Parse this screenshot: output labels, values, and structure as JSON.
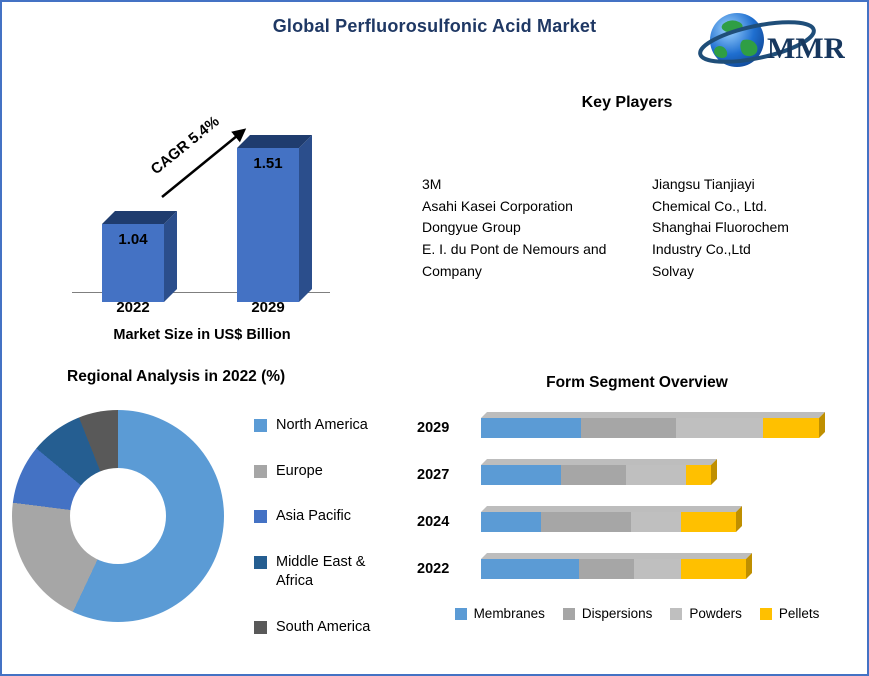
{
  "page": {
    "title": "Global Perfluorosulfonic Acid Market"
  },
  "logo": {
    "text": "MMR"
  },
  "key_players": {
    "title": "Key Players",
    "columns": [
      [
        "3M",
        "Asahi Kasei Corporation",
        "Dongyue Group",
        "E. I. du Pont de Nemours and Company"
      ],
      [
        "Jiangsu Tianjiayi Chemical Co., Ltd.",
        "Shanghai Fluorochem Industry Co.,Ltd",
        "Solvay"
      ]
    ]
  },
  "chart_data": [
    {
      "type": "bar",
      "title": "Market Size in US$ Billion",
      "categories": [
        "2022",
        "2029"
      ],
      "values": [
        1.04,
        1.51
      ],
      "annotation": "CAGR 5.4%",
      "bar_color": "#4472C4",
      "ylim": [
        0,
        1.6
      ]
    },
    {
      "type": "pie",
      "subtype": "donut",
      "title": "Regional Analysis in 2022 (%)",
      "labels": [
        "North America",
        "Europe",
        "Asia Pacific",
        "Middle East & Africa",
        "South America"
      ],
      "values": [
        57,
        20,
        9,
        8,
        6
      ],
      "colors": [
        "#5B9BD5",
        "#A6A6A6",
        "#4472C4",
        "#255E91",
        "#595959"
      ],
      "legend_position": "right"
    },
    {
      "type": "bar",
      "subtype": "stacked-horizontal",
      "title": "Form Segment Overview",
      "categories": [
        "2029",
        "2027",
        "2024",
        "2022"
      ],
      "series": [
        {
          "name": "Membranes",
          "color": "#5B9BD5",
          "values": [
            100,
            80,
            60,
            98
          ]
        },
        {
          "name": "Dispersions",
          "color": "#A6A6A6",
          "values": [
            95,
            65,
            90,
            55
          ]
        },
        {
          "name": "Powders",
          "color": "#BFBFBF",
          "values": [
            87,
            60,
            50,
            47
          ]
        },
        {
          "name": "Pellets",
          "color": "#FFC000",
          "values": [
            56,
            25,
            55,
            65
          ]
        }
      ],
      "legend_position": "bottom"
    }
  ]
}
